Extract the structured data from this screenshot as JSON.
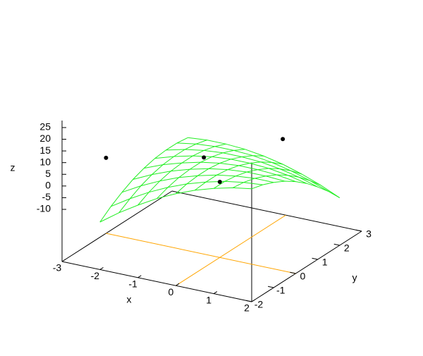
{
  "chart_data": {
    "type": "surface",
    "xlabel": "x",
    "ylabel": "y",
    "zlabel": "z",
    "xlim": [
      -3,
      2
    ],
    "ylim": [
      -2,
      3
    ],
    "zlim": [
      -10,
      28
    ],
    "xticks": [
      -3,
      -2,
      -1,
      0,
      1,
      2
    ],
    "yticks": [
      -2,
      -1,
      0,
      1,
      2,
      3
    ],
    "zticks": [
      -10,
      -5,
      0,
      5,
      10,
      15,
      20,
      25
    ],
    "zeroaxis": true,
    "zeroaxis_color": "#ffa500",
    "surface": {
      "color": "#22ee22",
      "x": [
        -2,
        -1.5,
        -1,
        -0.5,
        0,
        0.5,
        1,
        1.5,
        2
      ],
      "y": [
        -2,
        -1.5,
        -1,
        -0.5,
        0,
        0.5,
        1,
        1.5,
        2
      ],
      "z": [
        [
          -12,
          -6.3,
          -1.3,
          3.2,
          7,
          10.2,
          12.7,
          14.7,
          16
        ],
        [
          -8.3,
          -3.3,
          1.2,
          5,
          8.2,
          10.7,
          12.7,
          14,
          14.7
        ],
        [
          -5.3,
          -0.8,
          3,
          6.2,
          8.7,
          10.7,
          12,
          12.7,
          12.7
        ],
        [
          -2.8,
          1,
          4.2,
          6.7,
          8.7,
          10,
          10.7,
          10.7,
          10.2
        ],
        [
          -1,
          2.2,
          4.7,
          6.7,
          8,
          8.7,
          8.7,
          8.2,
          7
        ],
        [
          0.2,
          2.7,
          4.7,
          6,
          6.7,
          6.7,
          6.2,
          5,
          3.2
        ],
        [
          0.7,
          2.7,
          4,
          4.7,
          4.7,
          4.2,
          3,
          1.2,
          -1.3
        ],
        [
          0.7,
          2,
          2.7,
          2.7,
          2.2,
          1,
          -0.8,
          -3.3,
          -6.3
        ],
        [
          0,
          0.7,
          0.7,
          0.2,
          -1,
          -2.8,
          -5.3,
          -8.3,
          -12
        ]
      ]
    },
    "points": {
      "color": "#000000",
      "x": [
        -3,
        -1,
        0,
        0.5
      ],
      "y": [
        0,
        1,
        0,
        2
      ],
      "z": [
        0,
        1,
        0,
        8
      ]
    }
  }
}
